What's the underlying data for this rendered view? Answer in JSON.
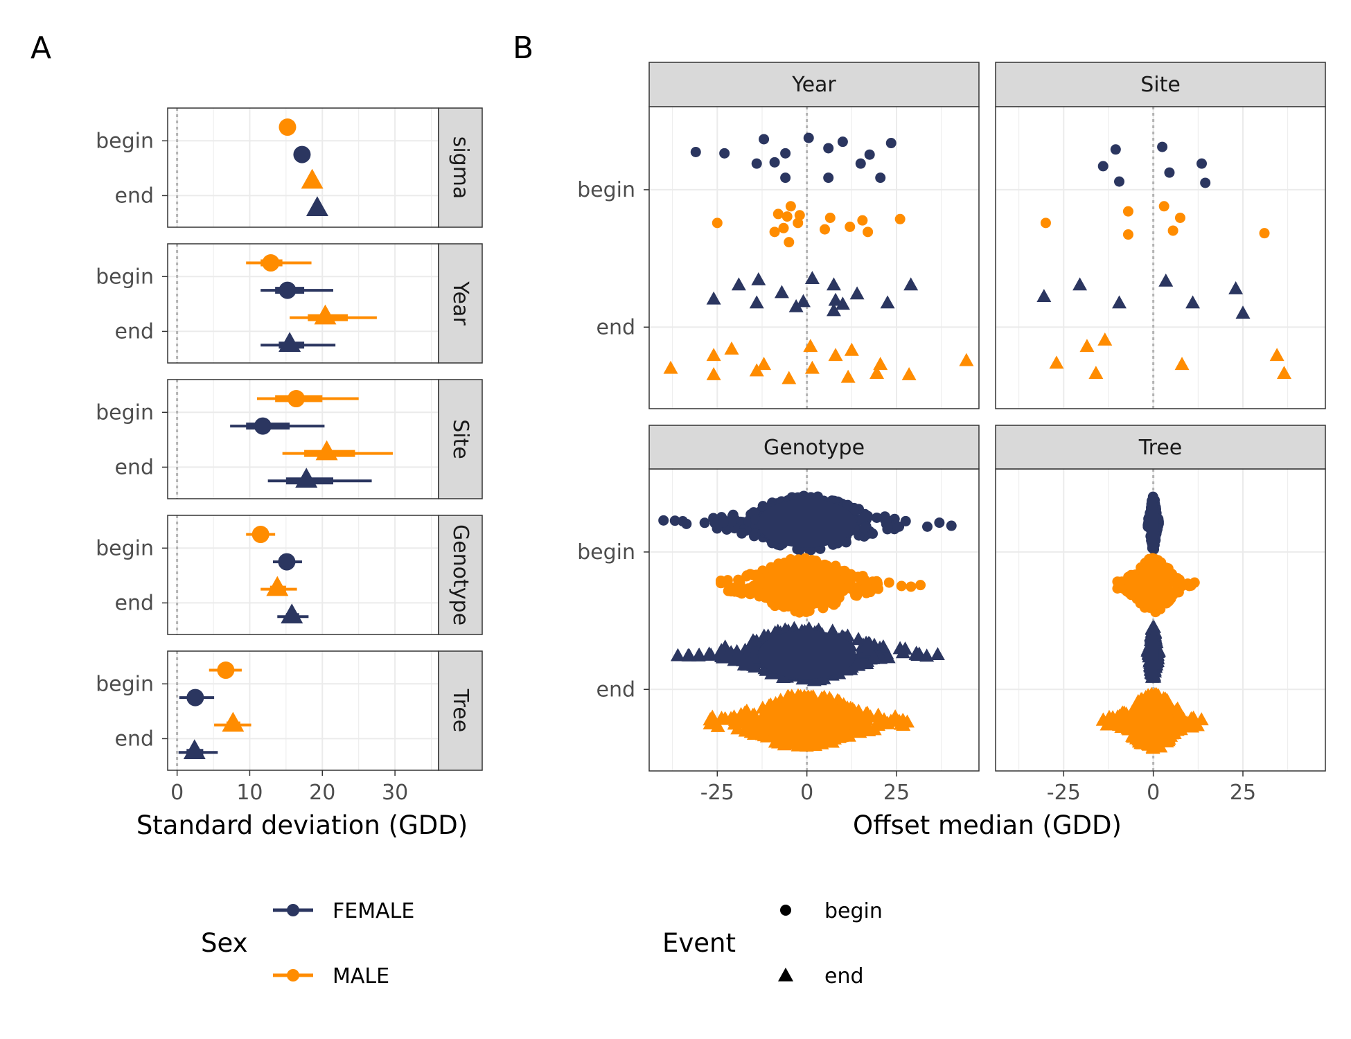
{
  "figure": {
    "panel_a_tag": "A",
    "panel_b_tag": "B"
  },
  "colors": {
    "female": "#2b3660",
    "male": "#ff8c00",
    "grid": "#ebebeb",
    "panel_border": "#333333",
    "strip_fill": "#d9d9d9",
    "zero_line": "#b3b3b3"
  },
  "legend": {
    "sex_title": "Sex",
    "sex_items": [
      {
        "label": "FEMALE",
        "color": "#2b3660"
      },
      {
        "label": "MALE",
        "color": "#ff8c00"
      }
    ],
    "event_title": "Event",
    "event_items": [
      {
        "label": "begin",
        "shape": "circle"
      },
      {
        "label": "end",
        "shape": "triangle"
      }
    ]
  },
  "chart_data": [
    {
      "panel": "A",
      "type": "scatter",
      "xlabel": "Standard deviation (GDD)",
      "xlim": [
        -1.3,
        36
      ],
      "xticks": [
        0,
        10,
        20,
        30
      ],
      "y_categories": [
        "begin",
        "end"
      ],
      "facets": [
        {
          "name": "sigma",
          "points": [
            {
              "sex": "MALE",
              "event": "begin",
              "est": 15.2,
              "lo50": null,
              "hi50": null,
              "lo95": null,
              "hi95": null
            },
            {
              "sex": "FEMALE",
              "event": "begin",
              "est": 17.2,
              "lo50": null,
              "hi50": null,
              "lo95": null,
              "hi95": null
            },
            {
              "sex": "MALE",
              "event": "end",
              "est": 18.6,
              "lo50": null,
              "hi50": null,
              "lo95": null,
              "hi95": null
            },
            {
              "sex": "FEMALE",
              "event": "end",
              "est": 19.3,
              "lo50": null,
              "hi50": null,
              "lo95": null,
              "hi95": null
            }
          ]
        },
        {
          "name": "Year",
          "points": [
            {
              "sex": "MALE",
              "event": "begin",
              "est": 12.9,
              "lo50": 11.5,
              "hi50": 14.5,
              "lo95": 9.5,
              "hi95": 18.5
            },
            {
              "sex": "FEMALE",
              "event": "begin",
              "est": 15.2,
              "lo50": 13.5,
              "hi50": 17.5,
              "lo95": 11.5,
              "hi95": 21.5
            },
            {
              "sex": "MALE",
              "event": "end",
              "est": 20.4,
              "lo50": 18.0,
              "hi50": 23.5,
              "lo95": 15.5,
              "hi95": 27.5
            },
            {
              "sex": "FEMALE",
              "event": "end",
              "est": 15.5,
              "lo50": 14.0,
              "hi50": 17.5,
              "lo95": 11.5,
              "hi95": 21.8
            }
          ]
        },
        {
          "name": "Site",
          "points": [
            {
              "sex": "MALE",
              "event": "begin",
              "est": 16.4,
              "lo50": 13.5,
              "hi50": 20.0,
              "lo95": 11.0,
              "hi95": 25.0
            },
            {
              "sex": "FEMALE",
              "event": "begin",
              "est": 11.8,
              "lo50": 9.5,
              "hi50": 15.5,
              "lo95": 7.3,
              "hi95": 20.3
            },
            {
              "sex": "MALE",
              "event": "end",
              "est": 20.6,
              "lo50": 17.5,
              "hi50": 24.5,
              "lo95": 14.5,
              "hi95": 29.7
            },
            {
              "sex": "FEMALE",
              "event": "end",
              "est": 17.8,
              "lo50": 15.0,
              "hi50": 21.5,
              "lo95": 12.5,
              "hi95": 26.8
            }
          ]
        },
        {
          "name": "Genotype",
          "points": [
            {
              "sex": "MALE",
              "event": "begin",
              "est": 11.5,
              "lo50": 10.5,
              "hi50": 12.5,
              "lo95": 9.5,
              "hi95": 13.5
            },
            {
              "sex": "FEMALE",
              "event": "begin",
              "est": 15.1,
              "lo50": 14.3,
              "hi50": 16.0,
              "lo95": 13.2,
              "hi95": 17.2
            },
            {
              "sex": "MALE",
              "event": "end",
              "est": 13.8,
              "lo50": 12.8,
              "hi50": 15.0,
              "lo95": 11.5,
              "hi95": 16.5
            },
            {
              "sex": "FEMALE",
              "event": "end",
              "est": 15.8,
              "lo50": 15.0,
              "hi50": 16.8,
              "lo95": 13.8,
              "hi95": 18.1
            }
          ]
        },
        {
          "name": "Tree",
          "points": [
            {
              "sex": "MALE",
              "event": "begin",
              "est": 6.7,
              "lo50": 5.8,
              "hi50": 7.7,
              "lo95": 4.4,
              "hi95": 8.9
            },
            {
              "sex": "FEMALE",
              "event": "begin",
              "est": 2.5,
              "lo50": 1.5,
              "hi50": 3.5,
              "lo95": 0.3,
              "hi95": 5.1
            },
            {
              "sex": "MALE",
              "event": "end",
              "est": 7.7,
              "lo50": 6.8,
              "hi50": 8.7,
              "lo95": 5.1,
              "hi95": 10.2
            },
            {
              "sex": "FEMALE",
              "event": "end",
              "est": 2.4,
              "lo50": 1.3,
              "hi50": 3.6,
              "lo95": 0.2,
              "hi95": 5.6
            }
          ]
        }
      ]
    },
    {
      "panel": "B",
      "type": "scatter",
      "xlabel": "Offset median (GDD)",
      "xlim": [
        -44,
        48
      ],
      "xticks": [
        -25,
        0,
        25
      ],
      "y_categories": [
        "begin",
        "end"
      ],
      "facets": [
        {
          "name": "Year",
          "mode": "points",
          "groups": [
            {
              "sex": "FEMALE",
              "event": "begin",
              "x": [
                -31,
                -23,
                -14,
                -12,
                -9,
                -6,
                -6,
                0.5,
                6,
                6,
                10,
                15,
                17.5,
                20.5,
                23.5
              ],
              "offset": [
                -0.35,
                -0.3,
                0.1,
                -0.85,
                0.05,
                -0.3,
                0.65,
                -0.9,
                -0.5,
                0.65,
                -0.75,
                0.1,
                -0.25,
                0.65,
                -0.7
              ]
            },
            {
              "sex": "MALE",
              "event": "begin",
              "x": [
                -25,
                -9,
                -8,
                -6.5,
                -5.5,
                -5,
                -4.5,
                -2.5,
                -2,
                5,
                6.5,
                12,
                15.5,
                17,
                26
              ],
              "offset": [
                0.0,
                0.35,
                -0.35,
                0.2,
                -0.25,
                0.75,
                -0.65,
                0.0,
                -0.3,
                0.25,
                -0.2,
                0.15,
                -0.1,
                0.35,
                -0.15
              ]
            },
            {
              "sex": "FEMALE",
              "event": "end",
              "x": [
                -26,
                -19,
                -14,
                -13.5,
                -7,
                -3,
                -1,
                1.5,
                7.5,
                7.5,
                8,
                10,
                14,
                22.5,
                29
              ],
              "offset": [
                0.3,
                -0.25,
                0.45,
                -0.45,
                0.05,
                0.6,
                0.4,
                -0.5,
                -0.25,
                0.75,
                0.35,
                0.5,
                0.1,
                0.45,
                -0.25
              ]
            },
            {
              "sex": "MALE",
              "event": "end",
              "x": [
                -38,
                -26,
                -26,
                -21,
                -14,
                -12,
                -5,
                1,
                1.5,
                8,
                11.5,
                12.5,
                19.5,
                20.5,
                28.5,
                44.5
              ],
              "offset": [
                0.35,
                0.6,
                -0.15,
                -0.4,
                0.45,
                0.2,
                0.75,
                -0.5,
                0.35,
                -0.15,
                0.7,
                -0.35,
                0.55,
                0.2,
                0.6,
                0.05
              ]
            }
          ]
        },
        {
          "name": "Site",
          "mode": "points",
          "groups": [
            {
              "sex": "FEMALE",
              "event": "begin",
              "x": [
                -14,
                -10.5,
                -9.5,
                2.5,
                4.5,
                13.5,
                14.5
              ],
              "offset": [
                0.2,
                -0.45,
                0.8,
                -0.55,
                0.45,
                0.1,
                0.85
              ]
            },
            {
              "sex": "MALE",
              "event": "begin",
              "x": [
                -30,
                -7,
                -7,
                3,
                5.5,
                7.5,
                31
              ],
              "offset": [
                0.0,
                0.45,
                -0.45,
                -0.65,
                0.3,
                -0.2,
                0.4
              ]
            },
            {
              "sex": "FEMALE",
              "event": "end",
              "x": [
                -30.5,
                -20.5,
                -9.5,
                3.5,
                11,
                23,
                25
              ],
              "offset": [
                0.2,
                -0.25,
                0.45,
                -0.4,
                0.45,
                -0.1,
                0.85
              ]
            },
            {
              "sex": "MALE",
              "event": "end",
              "x": [
                -27,
                -18.5,
                -16,
                -13.5,
                8,
                34.5,
                36.5
              ],
              "offset": [
                0.15,
                -0.5,
                0.55,
                -0.75,
                0.2,
                -0.15,
                0.55
              ]
            }
          ]
        },
        {
          "name": "Genotype",
          "mode": "swarm",
          "groups": [
            {
              "sex": "FEMALE",
              "event": "begin",
              "center": 0,
              "sd": 12,
              "min": -40,
              "max": 42,
              "count": 340
            },
            {
              "sex": "MALE",
              "event": "begin",
              "center": -1,
              "sd": 10,
              "min": -24,
              "max": 33,
              "count": 300
            },
            {
              "sex": "FEMALE",
              "event": "end",
              "center": 0,
              "sd": 12,
              "min": -36,
              "max": 38,
              "count": 330
            },
            {
              "sex": "MALE",
              "event": "end",
              "center": 0,
              "sd": 11,
              "min": -27,
              "max": 28,
              "count": 310
            }
          ]
        },
        {
          "name": "Tree",
          "mode": "swarm",
          "groups": [
            {
              "sex": "FEMALE",
              "event": "begin",
              "center": 0,
              "sd": 0.6,
              "min": -1.5,
              "max": 1.5,
              "count": 220
            },
            {
              "sex": "MALE",
              "event": "begin",
              "center": 0,
              "sd": 4,
              "min": -10,
              "max": 12,
              "count": 240
            },
            {
              "sex": "FEMALE",
              "event": "end",
              "center": 0,
              "sd": 0.6,
              "min": -1.5,
              "max": 1.5,
              "count": 220
            },
            {
              "sex": "MALE",
              "event": "end",
              "center": 0,
              "sd": 5,
              "min": -14,
              "max": 14,
              "count": 240
            }
          ]
        }
      ]
    }
  ]
}
